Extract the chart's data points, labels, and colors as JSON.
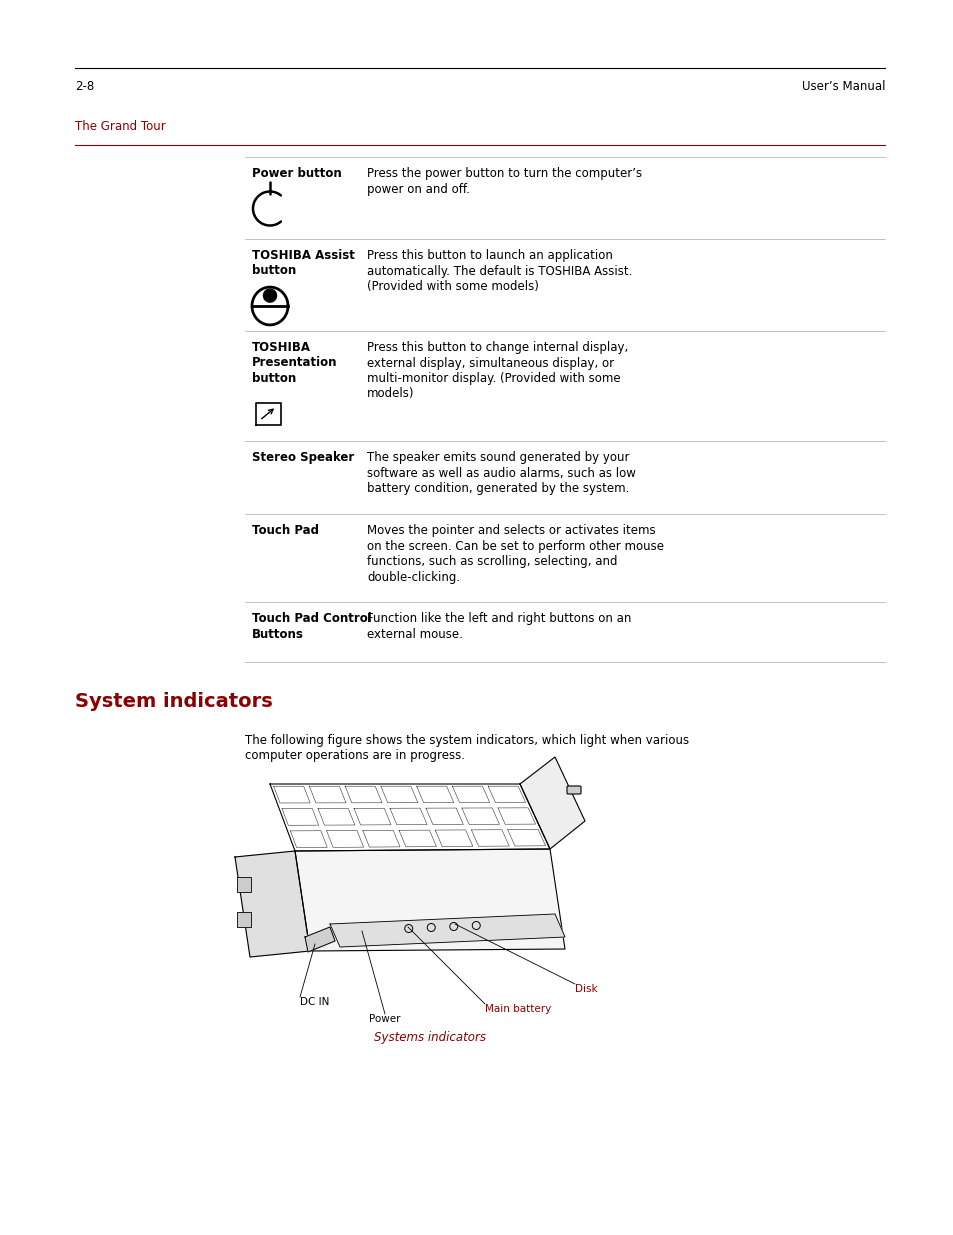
{
  "bg_color": "#ffffff",
  "page_width": 9.54,
  "page_height": 12.35,
  "header_text": "The Grand Tour",
  "header_color": "#8b0000",
  "header_line_color": "#8b0000",
  "footer_left": "2-8",
  "footer_right": "User’s Manual",
  "rows": [
    {
      "label": "Power button",
      "label_lines": 1,
      "has_icon": true,
      "icon": "power",
      "description": "Press the power button to turn the computer’s\npower on and off.",
      "desc_lines": 2
    },
    {
      "label": "TOSHIBA Assist\nbutton",
      "label_lines": 2,
      "has_icon": true,
      "icon": "assist",
      "description": "Press this button to launch an application\nautomatically. The default is TOSHIBA Assist.\n(Provided with some models)",
      "desc_lines": 3
    },
    {
      "label": "TOSHIBA\nPresentation\nbutton",
      "label_lines": 3,
      "has_icon": true,
      "icon": "presentation",
      "description": "Press this button to change internal display,\nexternal display, simultaneous display, or\nmulti-monitor display. (Provided with some\nmodels)",
      "desc_lines": 4
    },
    {
      "label": "Stereo Speaker",
      "label_lines": 1,
      "has_icon": false,
      "icon": null,
      "description": "The speaker emits sound generated by your\nsoftware as well as audio alarms, such as low\nbattery condition, generated by the system.",
      "desc_lines": 3
    },
    {
      "label": "Touch Pad",
      "label_lines": 1,
      "has_icon": false,
      "icon": null,
      "description": "Moves the pointer and selects or activates items\non the screen. Can be set to perform other mouse\nfunctions, such as scrolling, selecting, and\ndouble-clicking.",
      "desc_lines": 4
    },
    {
      "label": "Touch Pad Control\nButtons",
      "label_lines": 2,
      "has_icon": false,
      "icon": null,
      "description": "Function like the left and right buttons on an\nexternal mouse.",
      "desc_lines": 2
    }
  ],
  "section_title": "System indicators",
  "section_title_color": "#8b0000",
  "section_body": "The following figure shows the system indicators, which light when various\ncomputer operations are in progress.",
  "figure_caption": "Systems indicators",
  "figure_caption_color": "#8b0000",
  "label_disk_text": "Disk",
  "label_main_battery_text": "Main battery",
  "label_power_text": "Power",
  "label_dcin_text": "DC IN",
  "label_color_red": "#8b0000",
  "label_color_black": "#000000"
}
